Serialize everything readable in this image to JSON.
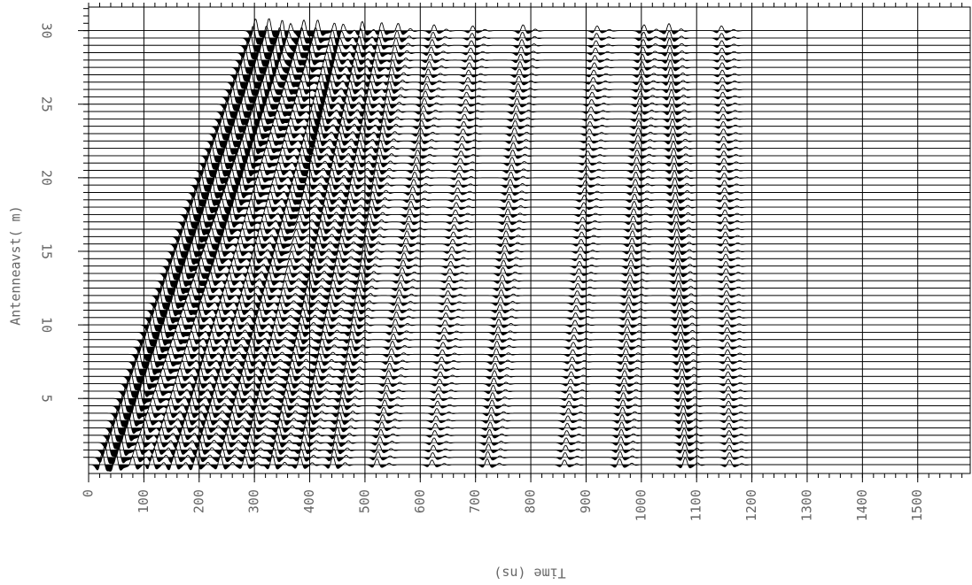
{
  "chart_data": {
    "type": "wiggle",
    "xlabel": "Time (ns)",
    "ylabel": "Antenneavst( m)",
    "xlim": [
      0,
      1595
    ],
    "ylim": [
      -0.1,
      31.6
    ],
    "xticks": [
      0,
      100,
      200,
      300,
      400,
      500,
      600,
      700,
      800,
      900,
      1000,
      1100,
      1200,
      1300,
      1400,
      1500
    ],
    "yticks": [
      5,
      10,
      15,
      20,
      25,
      30
    ],
    "grid": true,
    "color": "#000000",
    "traces": [
      0.5,
      1,
      1.5,
      2,
      2.5,
      3,
      3.5,
      4,
      4.5,
      5,
      5.5,
      6,
      6.5,
      7,
      7.5,
      8,
      8.5,
      9,
      9.5,
      10,
      10.5,
      11,
      11.5,
      12,
      12.5,
      13,
      13.5,
      14,
      14.5,
      15,
      15.5,
      16,
      16.5,
      17,
      17.5,
      18,
      18.5,
      19,
      19.5,
      20,
      20.5,
      21,
      21.5,
      22,
      22.5,
      23,
      23.5,
      24,
      24.5,
      25,
      25.5,
      26,
      26.5,
      27,
      27.5,
      28,
      28.5,
      29,
      29.5,
      30
    ],
    "events": [
      {
        "t0": 20,
        "slope": 9.4,
        "amp": 1.0
      },
      {
        "t0": 45,
        "slope": 9.4,
        "amp": 0.9
      },
      {
        "t0": 75,
        "slope": 9.2,
        "amp": 0.8
      },
      {
        "t0": 110,
        "slope": 8.5,
        "amp": 0.8
      },
      {
        "t0": 150,
        "slope": 8.0,
        "amp": 0.8
      },
      {
        "t0": 190,
        "slope": 7.5,
        "amp": 0.8
      },
      {
        "t0": 235,
        "slope": 7.0,
        "amp": 0.8
      },
      {
        "t0": 280,
        "slope": 6.0,
        "amp": 0.7
      },
      {
        "t0": 330,
        "slope": 5.5,
        "amp": 0.8
      },
      {
        "t0": 380,
        "slope": 5.0,
        "amp": 0.7
      },
      {
        "t0": 440,
        "slope": 4.0,
        "amp": 0.7
      },
      {
        "t0": 520,
        "slope": 3.5,
        "amp": 0.5
      },
      {
        "t0": 620,
        "slope": 2.5,
        "amp": 0.4
      },
      {
        "t0": 720,
        "slope": 2.2,
        "amp": 0.5
      },
      {
        "t0": 860,
        "slope": 2.0,
        "amp": 0.4
      },
      {
        "t0": 960,
        "slope": 1.5,
        "amp": 0.5
      },
      {
        "t0": 1080,
        "slope": -1.0,
        "amp": 0.6
      },
      {
        "t0": 1160,
        "slope": -0.5,
        "amp": 0.4
      }
    ]
  }
}
